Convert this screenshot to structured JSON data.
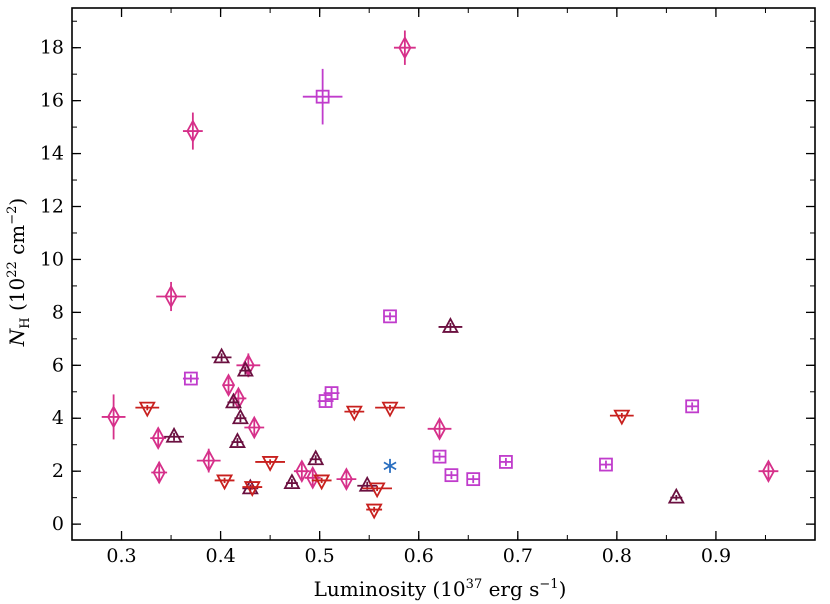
{
  "chart_data": {
    "type": "scatter",
    "xlabel": {
      "main": "Luminosity (10",
      "sup": "37",
      "tail": " erg s",
      "sup2": "−1",
      "end": ")"
    },
    "ylabel": {
      "main": "N",
      "sub": "H",
      "rest": " (10",
      "sup": "22",
      "mid": " cm",
      "sup2": "−2",
      "end": ")"
    },
    "xlim": [
      0.25,
      1.0
    ],
    "ylim": [
      -0.6,
      19.5
    ],
    "xticks": [
      0.3,
      0.4,
      0.5,
      0.6,
      0.7,
      0.8,
      0.9
    ],
    "xtick_labels": [
      "0.3",
      "0.4",
      "0.5",
      "0.6",
      "0.7",
      "0.8",
      "0.9"
    ],
    "yticks": [
      0,
      2,
      4,
      6,
      8,
      10,
      12,
      14,
      16,
      18
    ],
    "ytick_labels": [
      "0",
      "2",
      "4",
      "6",
      "8",
      "10",
      "12",
      "14",
      "16",
      "18"
    ],
    "grid": false,
    "legend": "none",
    "series": [
      {
        "marker": "diamond",
        "color": "#d6308a",
        "points": [
          {
            "x": 0.292,
            "y": 4.05,
            "xerr": 0.012,
            "yerr": 0.85
          },
          {
            "x": 0.337,
            "y": 3.25,
            "xerr": 0.008,
            "yerr": 0.35
          },
          {
            "x": 0.338,
            "y": 1.95,
            "xerr": 0.008,
            "yerr": 0.4
          },
          {
            "x": 0.35,
            "y": 8.6,
            "xerr": 0.015,
            "yerr": 0.55
          },
          {
            "x": 0.372,
            "y": 14.85,
            "xerr": 0.01,
            "yerr": 0.7
          },
          {
            "x": 0.388,
            "y": 2.4,
            "xerr": 0.012,
            "yerr": 0.45
          },
          {
            "x": 0.408,
            "y": 5.25,
            "xerr": 0.006,
            "yerr": 0.3
          },
          {
            "x": 0.418,
            "y": 4.75,
            "xerr": 0.008,
            "yerr": 0.35
          },
          {
            "x": 0.428,
            "y": 6.0,
            "xerr": 0.012,
            "yerr": 0.45
          },
          {
            "x": 0.434,
            "y": 3.65,
            "xerr": 0.01,
            "yerr": 0.3
          },
          {
            "x": 0.482,
            "y": 2.0,
            "xerr": 0.008,
            "yerr": 0.3
          },
          {
            "x": 0.493,
            "y": 1.75,
            "xerr": 0.008,
            "yerr": 0.3
          },
          {
            "x": 0.527,
            "y": 1.7,
            "xerr": 0.01,
            "yerr": 0.35
          },
          {
            "x": 0.586,
            "y": 18.0,
            "xerr": 0.011,
            "yerr": 0.65
          },
          {
            "x": 0.621,
            "y": 3.6,
            "xerr": 0.012,
            "yerr": 0.35
          },
          {
            "x": 0.953,
            "y": 2.0,
            "xerr": 0.01,
            "yerr": 0.3
          }
        ]
      },
      {
        "marker": "square",
        "color": "#c03ccc",
        "points": [
          {
            "x": 0.37,
            "y": 5.5,
            "xerr": 0.008,
            "yerr": 0.15
          },
          {
            "x": 0.503,
            "y": 16.15,
            "xerr": 0.02,
            "yerr": 1.05
          },
          {
            "x": 0.506,
            "y": 4.65,
            "xerr": 0.008,
            "yerr": 0.2
          },
          {
            "x": 0.512,
            "y": 4.95,
            "xerr": 0.008,
            "yerr": 0.2
          },
          {
            "x": 0.571,
            "y": 7.85,
            "xerr": 0.006,
            "yerr": 0.15
          },
          {
            "x": 0.621,
            "y": 2.55,
            "xerr": 0.006,
            "yerr": 0.15
          },
          {
            "x": 0.633,
            "y": 1.85,
            "xerr": 0.006,
            "yerr": 0.15
          },
          {
            "x": 0.655,
            "y": 1.7,
            "xerr": 0.006,
            "yerr": 0.15
          },
          {
            "x": 0.688,
            "y": 2.35,
            "xerr": 0.006,
            "yerr": 0.15
          },
          {
            "x": 0.789,
            "y": 2.25,
            "xerr": 0.006,
            "yerr": 0.15
          },
          {
            "x": 0.876,
            "y": 4.45,
            "xerr": 0.006,
            "yerr": 0.15
          }
        ]
      },
      {
        "marker": "triangle-up",
        "color": "#6b1040",
        "points": [
          {
            "x": 0.353,
            "y": 3.3,
            "xerr": 0.01,
            "yerr": 0.15
          },
          {
            "x": 0.401,
            "y": 6.3,
            "xerr": 0.01,
            "yerr": 0.15
          },
          {
            "x": 0.413,
            "y": 4.6,
            "xerr": 0.006,
            "yerr": 0.15
          },
          {
            "x": 0.417,
            "y": 3.1,
            "xerr": 0.006,
            "yerr": 0.15
          },
          {
            "x": 0.42,
            "y": 4.0,
            "xerr": 0.006,
            "yerr": 0.15
          },
          {
            "x": 0.425,
            "y": 5.8,
            "xerr": 0.006,
            "yerr": 0.15
          },
          {
            "x": 0.43,
            "y": 1.35,
            "xerr": 0.008,
            "yerr": 0.15
          },
          {
            "x": 0.472,
            "y": 1.55,
            "xerr": 0.006,
            "yerr": 0.15
          },
          {
            "x": 0.496,
            "y": 2.45,
            "xerr": 0.006,
            "yerr": 0.15
          },
          {
            "x": 0.548,
            "y": 1.45,
            "xerr": 0.01,
            "yerr": 0.15
          },
          {
            "x": 0.632,
            "y": 7.45,
            "xerr": 0.012,
            "yerr": 0.15
          },
          {
            "x": 0.86,
            "y": 1.0,
            "xerr": 0.006,
            "yerr": 0.1
          }
        ]
      },
      {
        "marker": "triangle-down",
        "color": "#c8201e",
        "points": [
          {
            "x": 0.326,
            "y": 4.4,
            "xerr": 0.012,
            "yerr": 0.1
          },
          {
            "x": 0.404,
            "y": 1.65,
            "xerr": 0.01,
            "yerr": 0.1
          },
          {
            "x": 0.432,
            "y": 1.4,
            "xerr": 0.01,
            "yerr": 0.1
          },
          {
            "x": 0.45,
            "y": 2.35,
            "xerr": 0.015,
            "yerr": 0.1
          },
          {
            "x": 0.502,
            "y": 1.65,
            "xerr": 0.01,
            "yerr": 0.1
          },
          {
            "x": 0.535,
            "y": 4.25,
            "xerr": 0.01,
            "yerr": 0.1
          },
          {
            "x": 0.555,
            "y": 0.55,
            "xerr": 0.008,
            "yerr": 0.1
          },
          {
            "x": 0.558,
            "y": 1.35,
            "xerr": 0.015,
            "yerr": 0.1
          },
          {
            "x": 0.571,
            "y": 4.4,
            "xerr": 0.015,
            "yerr": 0.1
          },
          {
            "x": 0.805,
            "y": 4.1,
            "xerr": 0.012,
            "yerr": 0.1
          }
        ]
      },
      {
        "marker": "asterisk",
        "color": "#2a6fc0",
        "points": [
          {
            "x": 0.571,
            "y": 2.2,
            "xerr": 0,
            "yerr": 0
          }
        ]
      }
    ]
  }
}
